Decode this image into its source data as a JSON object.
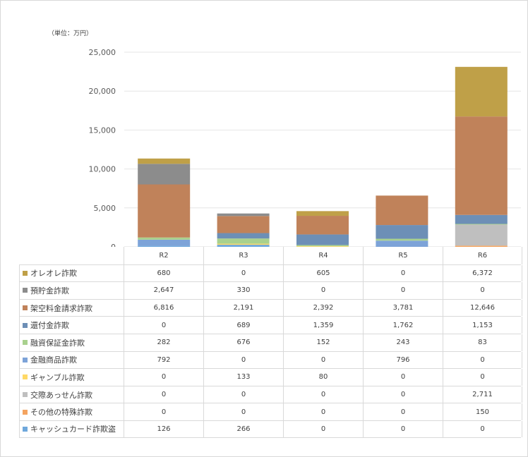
{
  "unit_label": "（単位：万円）",
  "chart_data": {
    "type": "bar",
    "stacked": true,
    "categories": [
      "R2",
      "R3",
      "R4",
      "R5",
      "R6"
    ],
    "ylim": [
      0,
      25000
    ],
    "yticks": [
      "0",
      "5,000",
      "10,000",
      "15,000",
      "20,000",
      "25,000"
    ],
    "ytick_values": [
      0,
      5000,
      10000,
      15000,
      20000,
      25000
    ],
    "grid": true,
    "legend": "table-below",
    "series": [
      {
        "name": "キャッシュカード詐欺盗",
        "color": "#6fa8dc",
        "values": [
          126,
          266,
          0,
          0,
          0
        ],
        "display": [
          "126",
          "266",
          "0",
          "0",
          "0"
        ]
      },
      {
        "name": "その他の特殊詐欺",
        "color": "#f4a460",
        "values": [
          0,
          0,
          0,
          0,
          150
        ],
        "display": [
          "0",
          "0",
          "0",
          "0",
          "150"
        ]
      },
      {
        "name": "交際あっせん詐欺",
        "color": "#bfbfbf",
        "values": [
          0,
          0,
          0,
          0,
          2711
        ],
        "display": [
          "0",
          "0",
          "0",
          "0",
          "2,711"
        ]
      },
      {
        "name": "ギャンブル詐欺",
        "color": "#ffd966",
        "values": [
          0,
          133,
          80,
          0,
          0
        ],
        "display": [
          "0",
          "133",
          "80",
          "0",
          "0"
        ]
      },
      {
        "name": "金融商品詐欺",
        "color": "#7da3d8",
        "values": [
          792,
          0,
          0,
          796,
          0
        ],
        "display": [
          "792",
          "0",
          "0",
          "796",
          "0"
        ]
      },
      {
        "name": "融資保証金詐欺",
        "color": "#a9d18e",
        "values": [
          282,
          676,
          152,
          243,
          83
        ],
        "display": [
          "282",
          "676",
          "152",
          "243",
          "83"
        ]
      },
      {
        "name": "還付金詐欺",
        "color": "#6d8fb6",
        "values": [
          0,
          689,
          1359,
          1762,
          1153
        ],
        "display": [
          "0",
          "689",
          "1,359",
          "1,762",
          "1,153"
        ]
      },
      {
        "name": "架空料金請求詐欺",
        "color": "#c0825a",
        "values": [
          6816,
          2191,
          2392,
          3781,
          12646
        ],
        "display": [
          "6,816",
          "2,191",
          "2,392",
          "3,781",
          "12,646"
        ]
      },
      {
        "name": "預貯金詐欺",
        "color": "#8c8c8c",
        "values": [
          2647,
          330,
          0,
          0,
          0
        ],
        "display": [
          "2,647",
          "330",
          "0",
          "0",
          "0"
        ]
      },
      {
        "name": "オレオレ詐欺",
        "color": "#bfa048",
        "values": [
          680,
          0,
          605,
          0,
          6372
        ],
        "display": [
          "680",
          "0",
          "605",
          "0",
          "6,372"
        ]
      }
    ],
    "table_order": [
      "オレオレ詐欺",
      "預貯金詐欺",
      "架空料金請求詐欺",
      "還付金詐欺",
      "融資保証金詐欺",
      "金融商品詐欺",
      "ギャンブル詐欺",
      "交際あっせん詐欺",
      "その他の特殊詐欺",
      "キャッシュカード詐欺盗"
    ]
  }
}
